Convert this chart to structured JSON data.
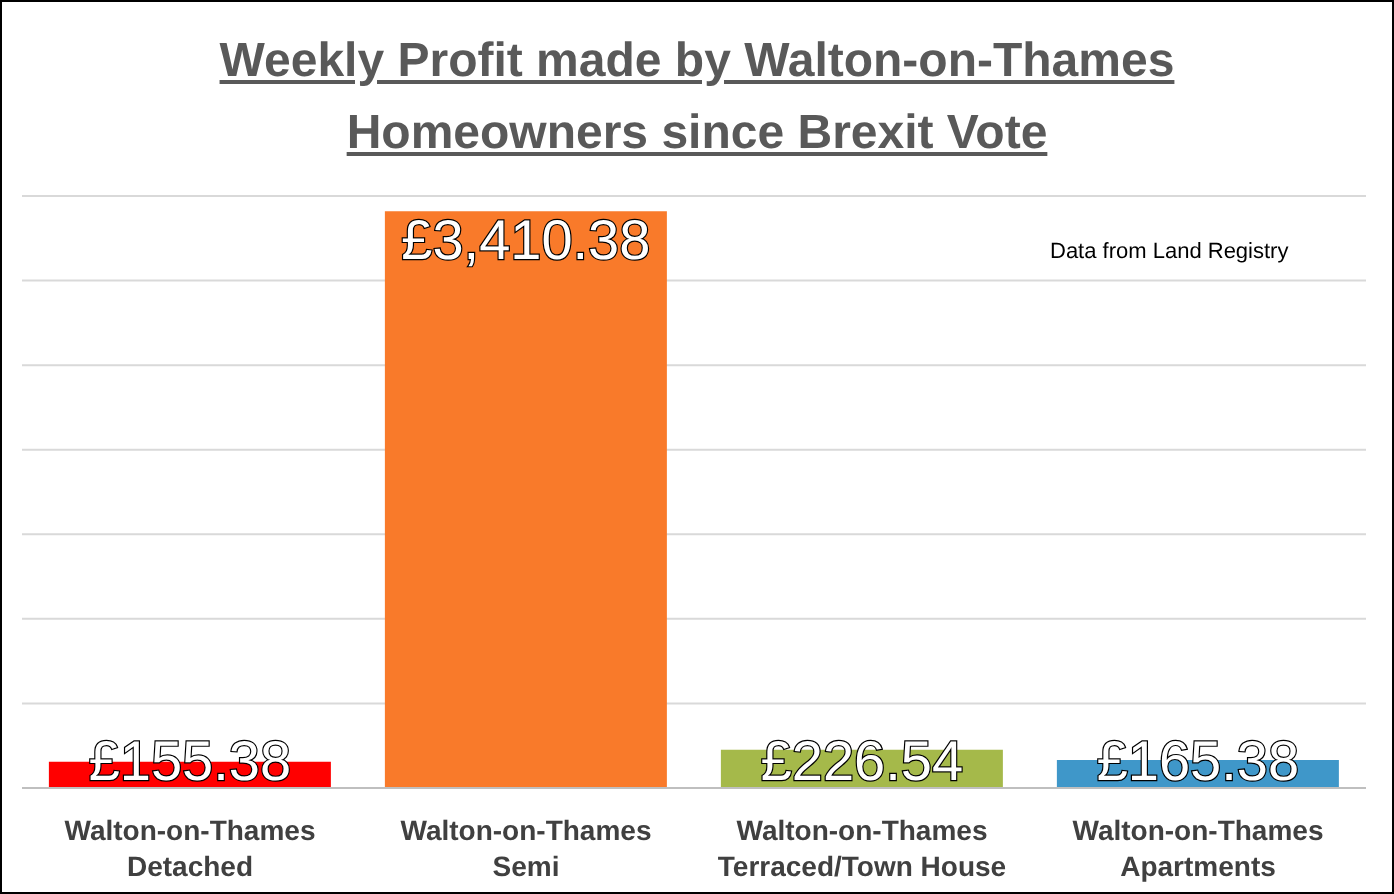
{
  "chart_data": {
    "type": "bar",
    "title": "Weekly Profit made by Walton-on-Thames Homeowners since Brexit Vote",
    "categories": [
      "Walton-on-Thames\nDetached",
      "Walton-on-Thames\nSemi",
      "Walton-on-Thames\nTerraced/Town House",
      "Walton-on-Thames\nApartments"
    ],
    "values": [
      155.38,
      3410.38,
      226.54,
      165.38
    ],
    "colors": [
      "#ff0000",
      "#f97a2a",
      "#a5b94a",
      "#3f97c9"
    ],
    "value_labels": [
      "£155.38",
      "£3,410.38",
      "£226.54",
      "£165.38"
    ],
    "ylim": [
      0,
      3500
    ],
    "yticks": [
      {
        "value": 0,
        "label": null
      },
      {
        "value": 500,
        "label": null
      },
      {
        "value": 1000,
        "label": null
      },
      {
        "value": 1500,
        "label": null
      },
      {
        "value": 2000,
        "label": null
      },
      {
        "value": 2500,
        "label": null
      },
      {
        "value": 3000,
        "label": null
      },
      {
        "value": 3500,
        "label": null
      }
    ],
    "tick_labels": "x",
    "grid": "y",
    "annotations": [
      "Data from Land Registry"
    ]
  }
}
